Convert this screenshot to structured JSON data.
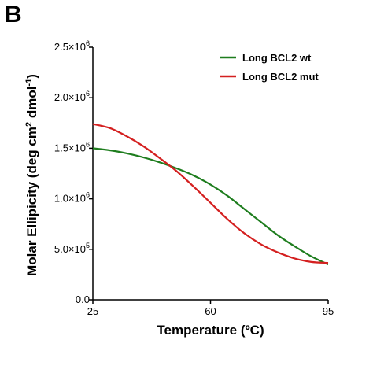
{
  "panel_label": "B",
  "colors": {
    "wt": "#1e7d1e",
    "mut": "#d42020",
    "axis": "#000000"
  },
  "chart_data": {
    "type": "line",
    "xlabel": "Temperature (ºC)",
    "ylabel_main": "Molar Ellipicity (deg cm",
    "ylabel_sup1": "2",
    "ylabel_mid": " dmol",
    "ylabel_sup2": "-1",
    "ylabel_end": ")",
    "xlim": [
      25,
      95
    ],
    "ylim": [
      0,
      2500000
    ],
    "xticks": [
      {
        "value": 25,
        "label": "25"
      },
      {
        "value": 60,
        "label": "60"
      },
      {
        "value": 95,
        "label": "95"
      }
    ],
    "yticks": [
      {
        "value": 0,
        "mant": "0.0",
        "exp": ""
      },
      {
        "value": 500000,
        "mant": "5.0×10",
        "exp": "5"
      },
      {
        "value": 1000000,
        "mant": "1.0×10",
        "exp": "6"
      },
      {
        "value": 1500000,
        "mant": "1.5×10",
        "exp": "6"
      },
      {
        "value": 2000000,
        "mant": "2.0×10",
        "exp": "6"
      },
      {
        "value": 2500000,
        "mant": "2.5×10",
        "exp": "6"
      }
    ],
    "legend_position": "top-right",
    "series": [
      {
        "key": "wt",
        "name": "Long BCL2 wt",
        "x": [
          25,
          30,
          35,
          40,
          45,
          50,
          55,
          60,
          65,
          70,
          75,
          80,
          85,
          90,
          95
        ],
        "y": [
          1500000,
          1480000,
          1450000,
          1410000,
          1360000,
          1300000,
          1230000,
          1140000,
          1030000,
          900000,
          770000,
          640000,
          530000,
          430000,
          350000
        ]
      },
      {
        "key": "mut",
        "name": "Long BCL2 mut",
        "x": [
          25,
          30,
          35,
          40,
          45,
          50,
          55,
          60,
          65,
          70,
          75,
          80,
          85,
          90,
          95
        ],
        "y": [
          1740000,
          1700000,
          1620000,
          1520000,
          1400000,
          1270000,
          1120000,
          960000,
          800000,
          660000,
          550000,
          470000,
          410000,
          375000,
          365000
        ]
      }
    ]
  }
}
